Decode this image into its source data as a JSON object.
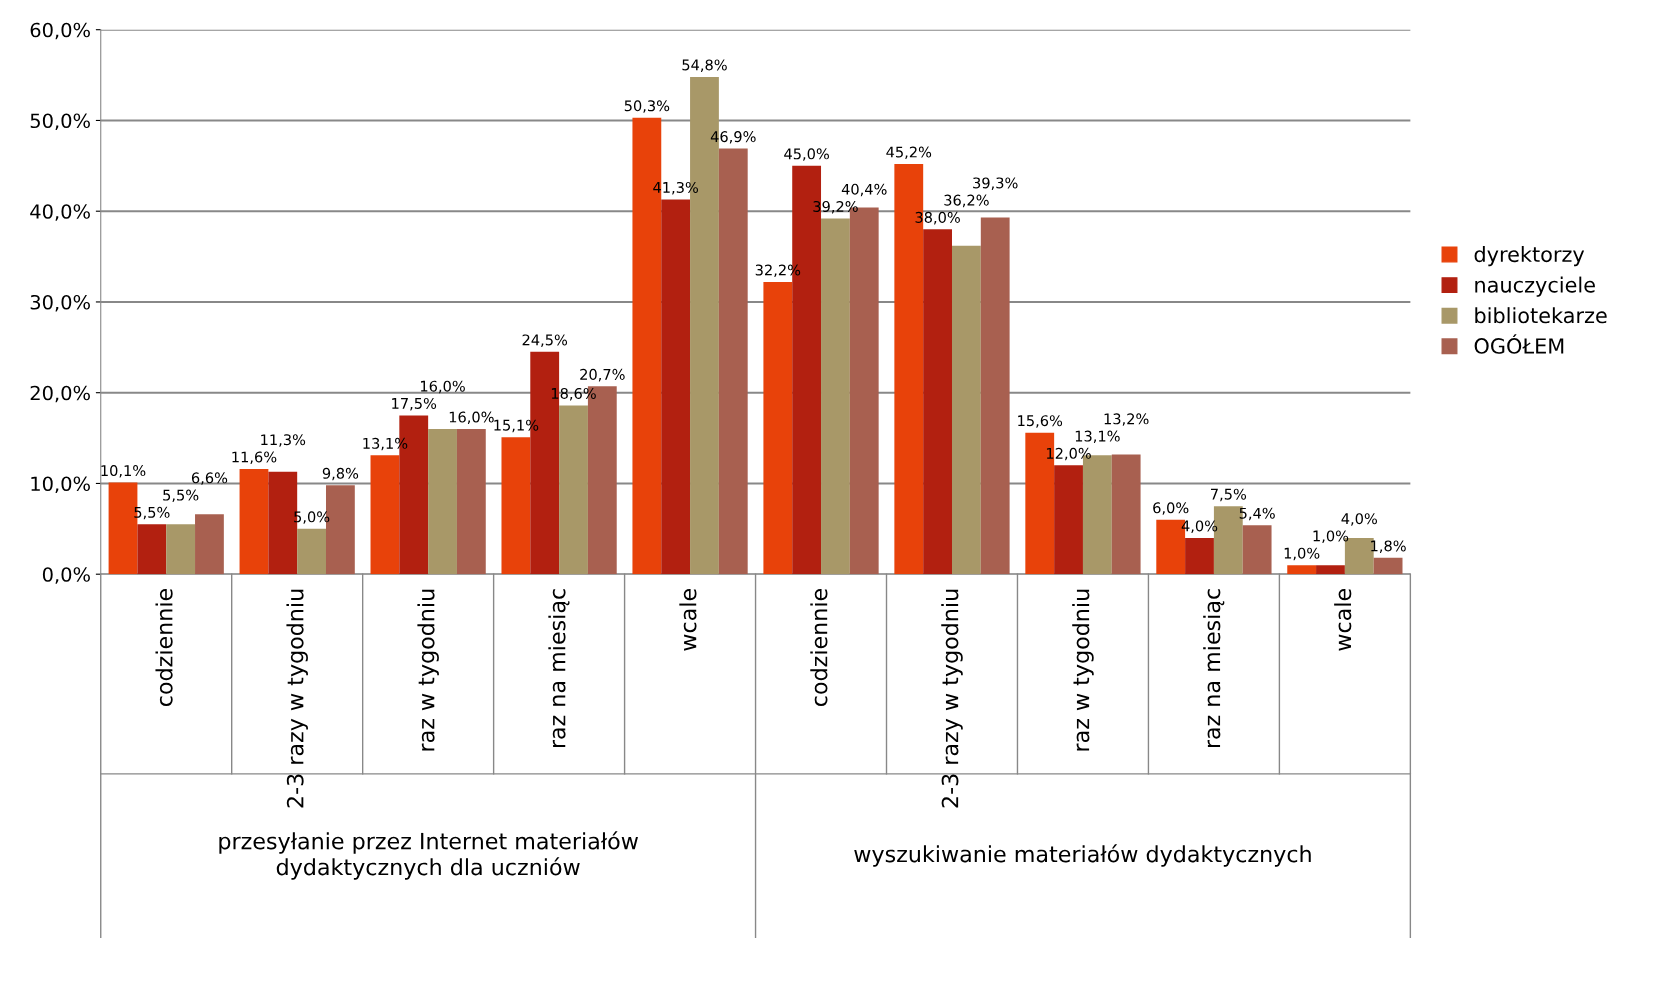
{
  "chart_data": {
    "type": "bar",
    "categories": [
      "codziennie",
      "2-3 razy w tygodniu",
      "raz w tygodniu",
      "raz na miesiąc",
      "wcale",
      "codziennie",
      "2-3 razy w tygodniu",
      "raz w tygodniu",
      "raz na miesiąc",
      "wcale"
    ],
    "series": [
      {
        "name": "dyrektorzy",
        "color": "#e8420a",
        "values": [
          10.1,
          11.6,
          13.1,
          15.1,
          50.3,
          32.2,
          45.2,
          15.6,
          6.0,
          1.0
        ],
        "value_labels": [
          "10,1%",
          "11,6%",
          "13,1%",
          "15,1%",
          "50,3%",
          "32,2%",
          "45,2%",
          "15,6%",
          "6,0%",
          "1,0%"
        ]
      },
      {
        "name": "nauczyciele",
        "color": "#b22010",
        "values": [
          5.5,
          11.3,
          17.5,
          24.5,
          41.3,
          45.0,
          38.0,
          12.0,
          4.0,
          1.0
        ],
        "value_labels": [
          "5,5%",
          "11,3%",
          "17,5%",
          "24,5%",
          "41,3%",
          "45,0%",
          "38,0%",
          "12,0%",
          "4,0%",
          "1,0%"
        ]
      },
      {
        "name": "bibliotekarze",
        "color": "#a89868",
        "values": [
          5.5,
          5.0,
          16.0,
          18.6,
          54.8,
          39.2,
          36.2,
          13.1,
          7.5,
          4.0
        ],
        "value_labels": [
          "5,5%",
          "5,0%",
          "16,0%",
          "18,6%",
          "54,8%",
          "39,2%",
          "36,2%",
          "13,1%",
          "7,5%",
          "4,0%"
        ]
      },
      {
        "name": "OGÓŁEM",
        "color": "#a86050",
        "values": [
          6.6,
          9.8,
          16.0,
          20.7,
          46.9,
          40.4,
          39.3,
          13.2,
          5.4,
          1.8
        ],
        "value_labels": [
          "6,6%",
          "9,8%",
          "16,0%",
          "20,7%",
          "46,9%",
          "40,4%",
          "39,3%",
          "13,2%",
          "5,4%",
          "1,8%"
        ]
      }
    ],
    "ylim": [
      0,
      60
    ],
    "yticks": [
      {
        "value": 0,
        "label": "0,0%"
      },
      {
        "value": 10,
        "label": "10,0%"
      },
      {
        "value": 20,
        "label": "20,0%"
      },
      {
        "value": 30,
        "label": "30,0%"
      },
      {
        "value": 40,
        "label": "40,0%"
      },
      {
        "value": 50,
        "label": "50,0%"
      },
      {
        "value": 60,
        "label": "60,0%"
      }
    ],
    "grid": "y",
    "legend": "right",
    "annotations": [
      "przesyłanie przez Internet materiałów dydaktycznych dla uczniów",
      "wyszukiwanie materiałów dydaktycznych"
    ]
  }
}
